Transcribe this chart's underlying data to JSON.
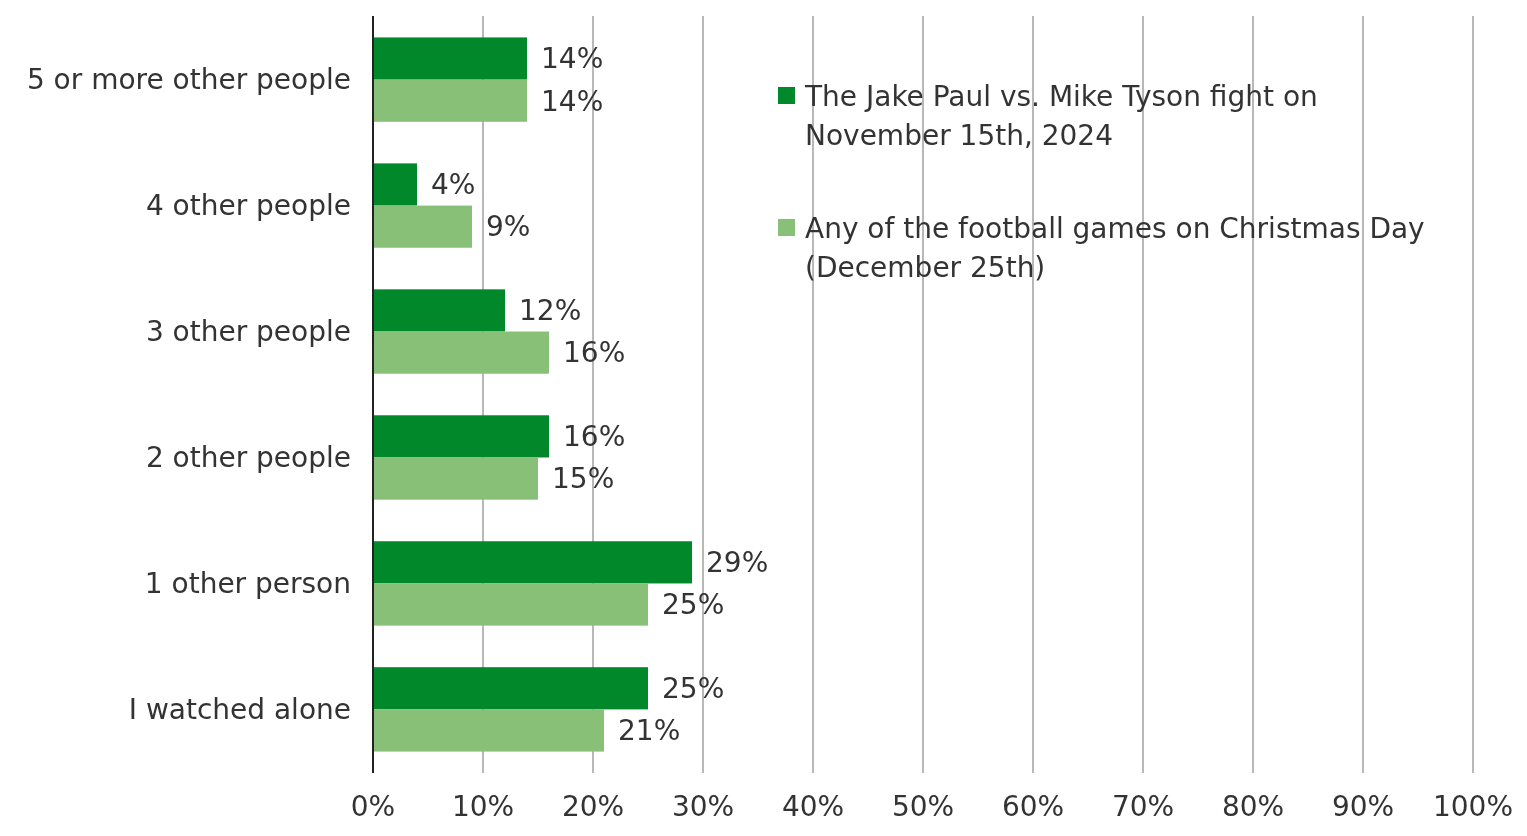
{
  "chart_data": {
    "type": "bar",
    "orientation": "horizontal",
    "categories": [
      "5 or more other people",
      "4 other people",
      "3 other people",
      "2 other people",
      "1 other person",
      "I watched alone"
    ],
    "series": [
      {
        "name": "The Jake Paul vs. Mike Tyson fight on November 15th, 2024",
        "color": "#00882b",
        "values": [
          14,
          4,
          12,
          16,
          29,
          25
        ],
        "value_labels": [
          "14%",
          "4%",
          "12%",
          "16%",
          "29%",
          "25%"
        ]
      },
      {
        "name": "Any of the football games on Christmas Day (December 25th)",
        "color": "#88c077",
        "values": [
          14,
          9,
          16,
          15,
          25,
          21
        ],
        "value_labels": [
          "14%",
          "9%",
          "16%",
          "15%",
          "25%",
          "21%"
        ]
      }
    ],
    "xlim": [
      0,
      100
    ],
    "xticks": [
      {
        "value": 0,
        "label": "0%"
      },
      {
        "value": 10,
        "label": "10%"
      },
      {
        "value": 20,
        "label": "20%"
      },
      {
        "value": 30,
        "label": "30%"
      },
      {
        "value": 40,
        "label": "40%"
      },
      {
        "value": 50,
        "label": "50%"
      },
      {
        "value": 60,
        "label": "60%"
      },
      {
        "value": 70,
        "label": "70%"
      },
      {
        "value": 80,
        "label": "80%"
      },
      {
        "value": 90,
        "label": "90%"
      },
      {
        "value": 100,
        "label": "100%"
      }
    ],
    "grid": "x",
    "legend": "top right"
  }
}
